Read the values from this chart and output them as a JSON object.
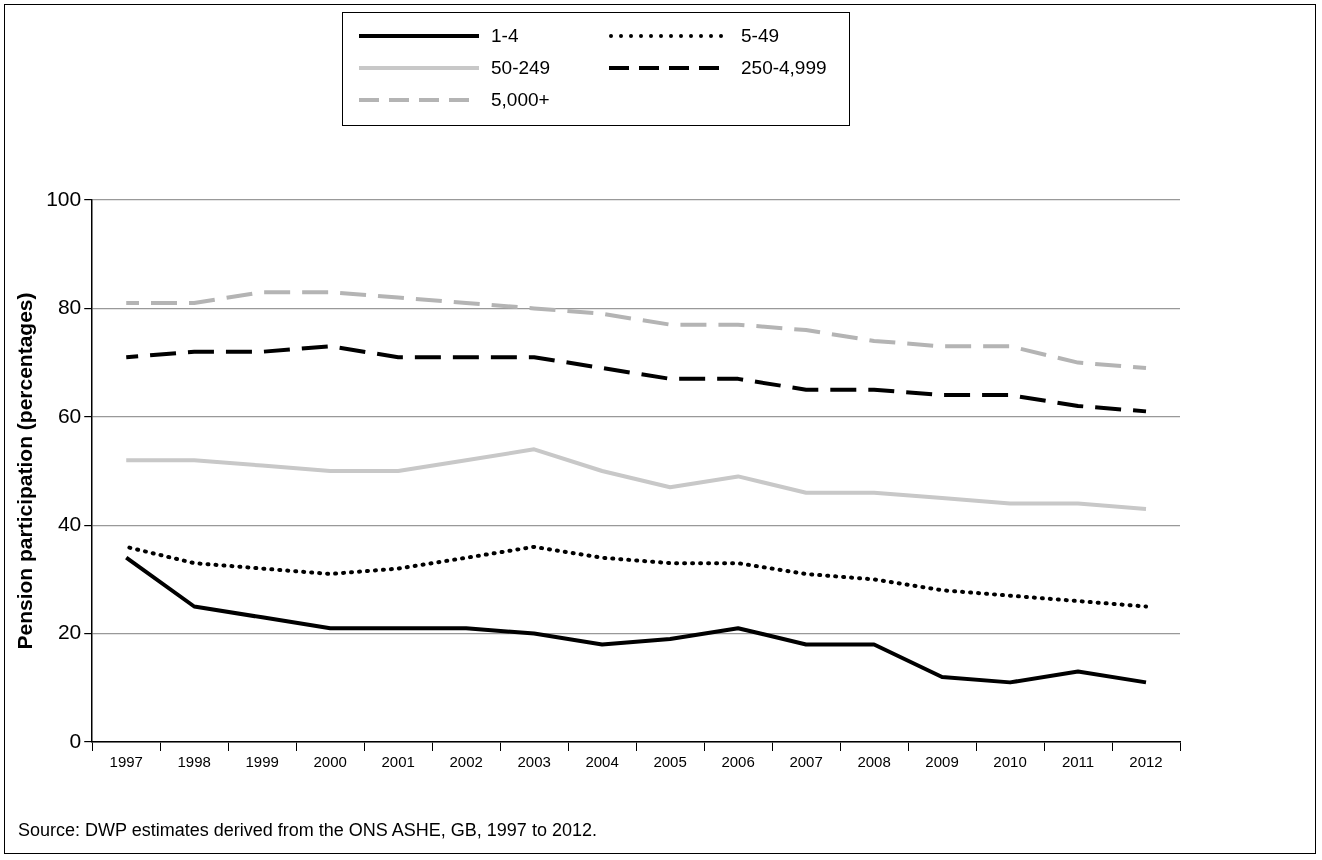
{
  "chart_data": {
    "type": "line",
    "ylabel": "Pension participation (percentages)",
    "categories": [
      "1997",
      "1998",
      "1999",
      "2000",
      "2001",
      "2002",
      "2003",
      "2004",
      "2005",
      "2006",
      "2007",
      "2008",
      "2009",
      "2010",
      "2011",
      "2012"
    ],
    "series": [
      {
        "name": "1-4",
        "color": "#000000",
        "line_style": "solid",
        "values": [
          34,
          25,
          23,
          21,
          21,
          21,
          20,
          18,
          19,
          21,
          18,
          18,
          12,
          11,
          13,
          11
        ]
      },
      {
        "name": "5-49",
        "color": "#000000",
        "line_style": "dotted",
        "values": [
          36,
          33,
          32,
          31,
          32,
          34,
          36,
          34,
          33,
          33,
          31,
          30,
          28,
          27,
          26,
          25
        ]
      },
      {
        "name": "50-249",
        "color": "#c8c8c8",
        "line_style": "solid",
        "values": [
          52,
          52,
          51,
          50,
          50,
          52,
          54,
          50,
          47,
          49,
          46,
          46,
          45,
          44,
          44,
          43
        ]
      },
      {
        "name": "250-4,999",
        "color": "#000000",
        "line_style": "dashed",
        "values": [
          71,
          72,
          72,
          73,
          71,
          71,
          71,
          69,
          67,
          67,
          65,
          65,
          64,
          64,
          62,
          61
        ]
      },
      {
        "name": "5,000+",
        "color": "#b4b4b4",
        "line_style": "dashed",
        "values": [
          81,
          81,
          83,
          83,
          82,
          81,
          80,
          79,
          77,
          77,
          76,
          74,
          73,
          73,
          70,
          69
        ]
      }
    ],
    "ylim": [
      0,
      100
    ],
    "yticks": [
      0,
      20,
      40,
      60,
      80,
      100
    ],
    "grid": "y",
    "legend": "top",
    "marker": "none",
    "annotations": [
      "Source: DWP estimates derived from the ONS ASHE, GB, 1997 to 2012."
    ]
  }
}
